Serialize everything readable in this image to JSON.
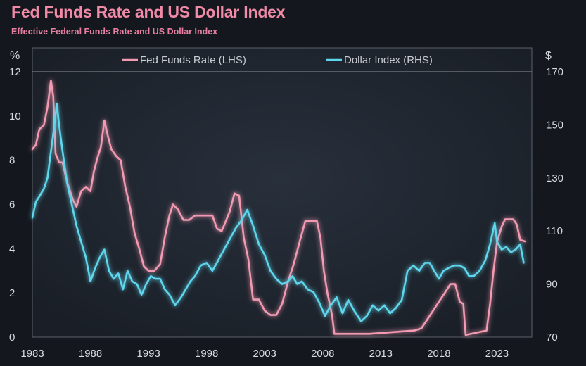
{
  "title": "Fed Funds Rate and US Dollar Index",
  "subtitle": "Effective Federal Funds Rate and US Dollar Index",
  "chart_data": {
    "type": "line",
    "title": "Fed Funds Rate and US Dollar Index",
    "subtitle": "Effective Federal Funds Rate and US Dollar Index",
    "left_unit": "%",
    "right_unit": "$",
    "xlim": [
      1983,
      2026
    ],
    "ylim_left": [
      0,
      12
    ],
    "ylim_right": [
      70,
      170
    ],
    "x_ticks": [
      1983,
      1988,
      1993,
      1998,
      2003,
      2008,
      2013,
      2018,
      2023
    ],
    "y_ticks_left": [
      0,
      2,
      4,
      6,
      8,
      10,
      12
    ],
    "y_ticks_right": [
      70,
      90,
      110,
      130,
      150,
      170
    ],
    "legend": [
      "Fed Funds Rate (LHS)",
      "Dollar Index (RHS)"
    ],
    "series": [
      {
        "name": "Fed Funds Rate (LHS)",
        "axis": "left",
        "color": "#f29ab2",
        "x": [
          1983.0,
          1983.3,
          1983.6,
          1984.0,
          1984.3,
          1984.6,
          1984.8,
          1985.0,
          1985.3,
          1985.6,
          1986.0,
          1986.5,
          1986.8,
          1987.2,
          1987.6,
          1988.0,
          1988.3,
          1988.6,
          1988.9,
          1989.2,
          1989.5,
          1989.8,
          1990.2,
          1990.6,
          1991.0,
          1991.4,
          1991.8,
          1992.2,
          1992.6,
          1993.0,
          1993.5,
          1994.0,
          1994.4,
          1994.8,
          1995.1,
          1995.5,
          1996.0,
          1996.5,
          1997.0,
          1997.5,
          1998.0,
          1998.5,
          1998.9,
          1999.3,
          1999.7,
          2000.0,
          2000.4,
          2000.8,
          2001.2,
          2001.6,
          2002.0,
          2002.5,
          2003.0,
          2003.5,
          2004.0,
          2004.5,
          2005.0,
          2005.5,
          2006.0,
          2006.5,
          2007.0,
          2007.5,
          2007.8,
          2008.1,
          2008.4,
          2008.8,
          2009.0,
          2012.0,
          2015.9,
          2016.5,
          2017.0,
          2017.5,
          2018.0,
          2018.5,
          2019.0,
          2019.4,
          2019.8,
          2020.1,
          2020.3,
          2022.1,
          2022.4,
          2022.7,
          2023.0,
          2023.4,
          2023.7,
          2024.4,
          2024.7,
          2025.0,
          2025.4
        ],
        "values": [
          8.5,
          8.7,
          9.4,
          9.6,
          10.4,
          11.6,
          10.9,
          8.3,
          7.9,
          7.9,
          7.0,
          6.2,
          5.9,
          6.6,
          6.8,
          6.6,
          7.5,
          8.1,
          8.6,
          9.8,
          9.1,
          8.5,
          8.2,
          8.0,
          6.8,
          5.9,
          4.7,
          4.0,
          3.2,
          3.0,
          3.0,
          3.3,
          4.5,
          5.5,
          6.0,
          5.8,
          5.3,
          5.3,
          5.5,
          5.5,
          5.5,
          5.5,
          4.9,
          4.8,
          5.3,
          5.7,
          6.5,
          6.4,
          4.5,
          3.5,
          1.7,
          1.7,
          1.2,
          1.0,
          1.0,
          1.5,
          2.5,
          3.3,
          4.3,
          5.25,
          5.25,
          5.25,
          4.5,
          3.0,
          2.0,
          1.0,
          0.15,
          0.15,
          0.3,
          0.4,
          0.8,
          1.2,
          1.6,
          2.0,
          2.4,
          2.4,
          1.6,
          1.5,
          0.1,
          0.3,
          1.5,
          3.0,
          4.3,
          5.0,
          5.33,
          5.33,
          5.1,
          4.4,
          4.33
        ]
      },
      {
        "name": "Dollar Index (RHS)",
        "axis": "right",
        "color": "#5ed6ec",
        "x": [
          1983.0,
          1983.3,
          1983.6,
          1984.0,
          1984.3,
          1984.6,
          1984.9,
          1985.1,
          1985.3,
          1985.6,
          1986.0,
          1986.4,
          1986.8,
          1987.2,
          1987.6,
          1988.0,
          1988.4,
          1988.8,
          1989.2,
          1989.6,
          1990.0,
          1990.4,
          1990.8,
          1991.2,
          1991.6,
          1992.0,
          1992.4,
          1992.8,
          1993.2,
          1993.6,
          1994.0,
          1994.4,
          1994.8,
          1995.3,
          1995.8,
          1996.2,
          1996.6,
          1997.0,
          1997.5,
          1998.0,
          1998.5,
          1999.0,
          1999.5,
          2000.0,
          2000.5,
          2001.0,
          2001.5,
          2002.0,
          2002.5,
          2003.0,
          2003.5,
          2004.0,
          2004.5,
          2005.0,
          2005.4,
          2005.8,
          2006.2,
          2006.7,
          2007.2,
          2007.7,
          2008.2,
          2008.7,
          2009.2,
          2009.7,
          2010.2,
          2010.7,
          2011.3,
          2011.8,
          2012.3,
          2012.8,
          2013.3,
          2013.8,
          2014.3,
          2014.8,
          2015.3,
          2015.8,
          2016.3,
          2016.8,
          2017.2,
          2017.6,
          2018.0,
          2018.4,
          2018.8,
          2019.3,
          2019.8,
          2020.2,
          2020.6,
          2021.0,
          2021.5,
          2022.0,
          2022.4,
          2022.8,
          2023.0,
          2023.4,
          2023.8,
          2024.2,
          2024.6,
          2025.0,
          2025.3
        ],
        "values": [
          115,
          121,
          123,
          126,
          130,
          140,
          150,
          158,
          150,
          140,
          128,
          120,
          112,
          106,
          100,
          91,
          96,
          100,
          103,
          95,
          92,
          94,
          88,
          95,
          91,
          90,
          86,
          90,
          93,
          92,
          92,
          88,
          86,
          82,
          85,
          88,
          91,
          93,
          97,
          98,
          95,
          99,
          103,
          107,
          111,
          114,
          118,
          112,
          105,
          101,
          95,
          92,
          90,
          91,
          93,
          90,
          91,
          88,
          87,
          83,
          78,
          82,
          85,
          79,
          84,
          80,
          76,
          78,
          82,
          80,
          82,
          79,
          81,
          84,
          95,
          97,
          95,
          98,
          98,
          95,
          92,
          95,
          96,
          97,
          97,
          96,
          93,
          93,
          95,
          99,
          105,
          113,
          106,
          103,
          104,
          102,
          103,
          105,
          98
        ]
      }
    ]
  }
}
